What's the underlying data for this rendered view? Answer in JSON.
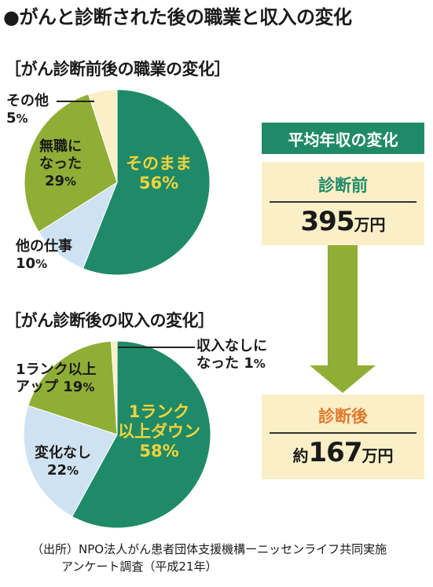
{
  "title": "●がんと診断された後の職業と収入の変化",
  "colors": {
    "dark_green": "#1f8a67",
    "olive_green": "#90ae35",
    "light_blue": "#cfe2f1",
    "cream": "#fbefc7",
    "yellow_text": "#f2d33c"
  },
  "chart_data": [
    {
      "type": "pie",
      "title": "［がん診断前後の職業の変化］",
      "slices": [
        {
          "label": "そのまま",
          "value": 56,
          "value_label": "56%",
          "color": "#1f8a67"
        },
        {
          "label": "他の仕事",
          "value": 10,
          "value_label": "10%",
          "color": "#cfe2f1"
        },
        {
          "label": "無職になった",
          "value": 29,
          "value_label": "29%",
          "color": "#90ae35"
        },
        {
          "label": "その他",
          "value": 5,
          "value_label": "5%",
          "color": "#fbefc7"
        }
      ]
    },
    {
      "type": "pie",
      "title": "［がん診断後の収入の変化］",
      "slices": [
        {
          "label": "1ランク以上ダウン",
          "value": 58,
          "value_label": "58%",
          "color": "#1f8a67"
        },
        {
          "label": "変化なし",
          "value": 22,
          "value_label": "22%",
          "color": "#cfe2f1"
        },
        {
          "label": "1ランク以上アップ",
          "value": 19,
          "value_label": "19%",
          "color": "#90ae35"
        },
        {
          "label": "収入なしになった",
          "value": 1,
          "value_label": "1%",
          "color": "#fbefc7"
        }
      ]
    }
  ],
  "pie1_labels": {
    "keep_1": "そのまま",
    "keep_2": "56%",
    "other_job_1": "他の仕事",
    "other_job_2": "10",
    "other_job_pct": "%",
    "jobless_1": "無職に",
    "jobless_2": "なった",
    "jobless_3": "29",
    "jobless_pct": "%",
    "other_1": "その他",
    "other_2": "5",
    "other_pct": "%"
  },
  "pie2_labels": {
    "down_1": "1ランク",
    "down_2": "以上ダウン",
    "down_3": "58%",
    "same_1": "変化なし",
    "same_2": "22",
    "same_pct": "%",
    "up_1": "1ランク以上",
    "up_2": "アップ 19",
    "up_pct": "%",
    "none_1": "収入なしに",
    "none_2": "なった 1",
    "none_pct": "%"
  },
  "income_panel": {
    "header": "平均年収の変化",
    "before_label": "診断前",
    "before_value": "395",
    "before_unit": "万円",
    "after_label": "診断後",
    "after_prefix": "約",
    "after_value": "167",
    "after_unit": "万円"
  },
  "source": {
    "line1": "（出所）NPO法人がん患者団体支援機構ーニッセンライフ共同実施",
    "line2": "アンケート調査（平成21年）"
  }
}
